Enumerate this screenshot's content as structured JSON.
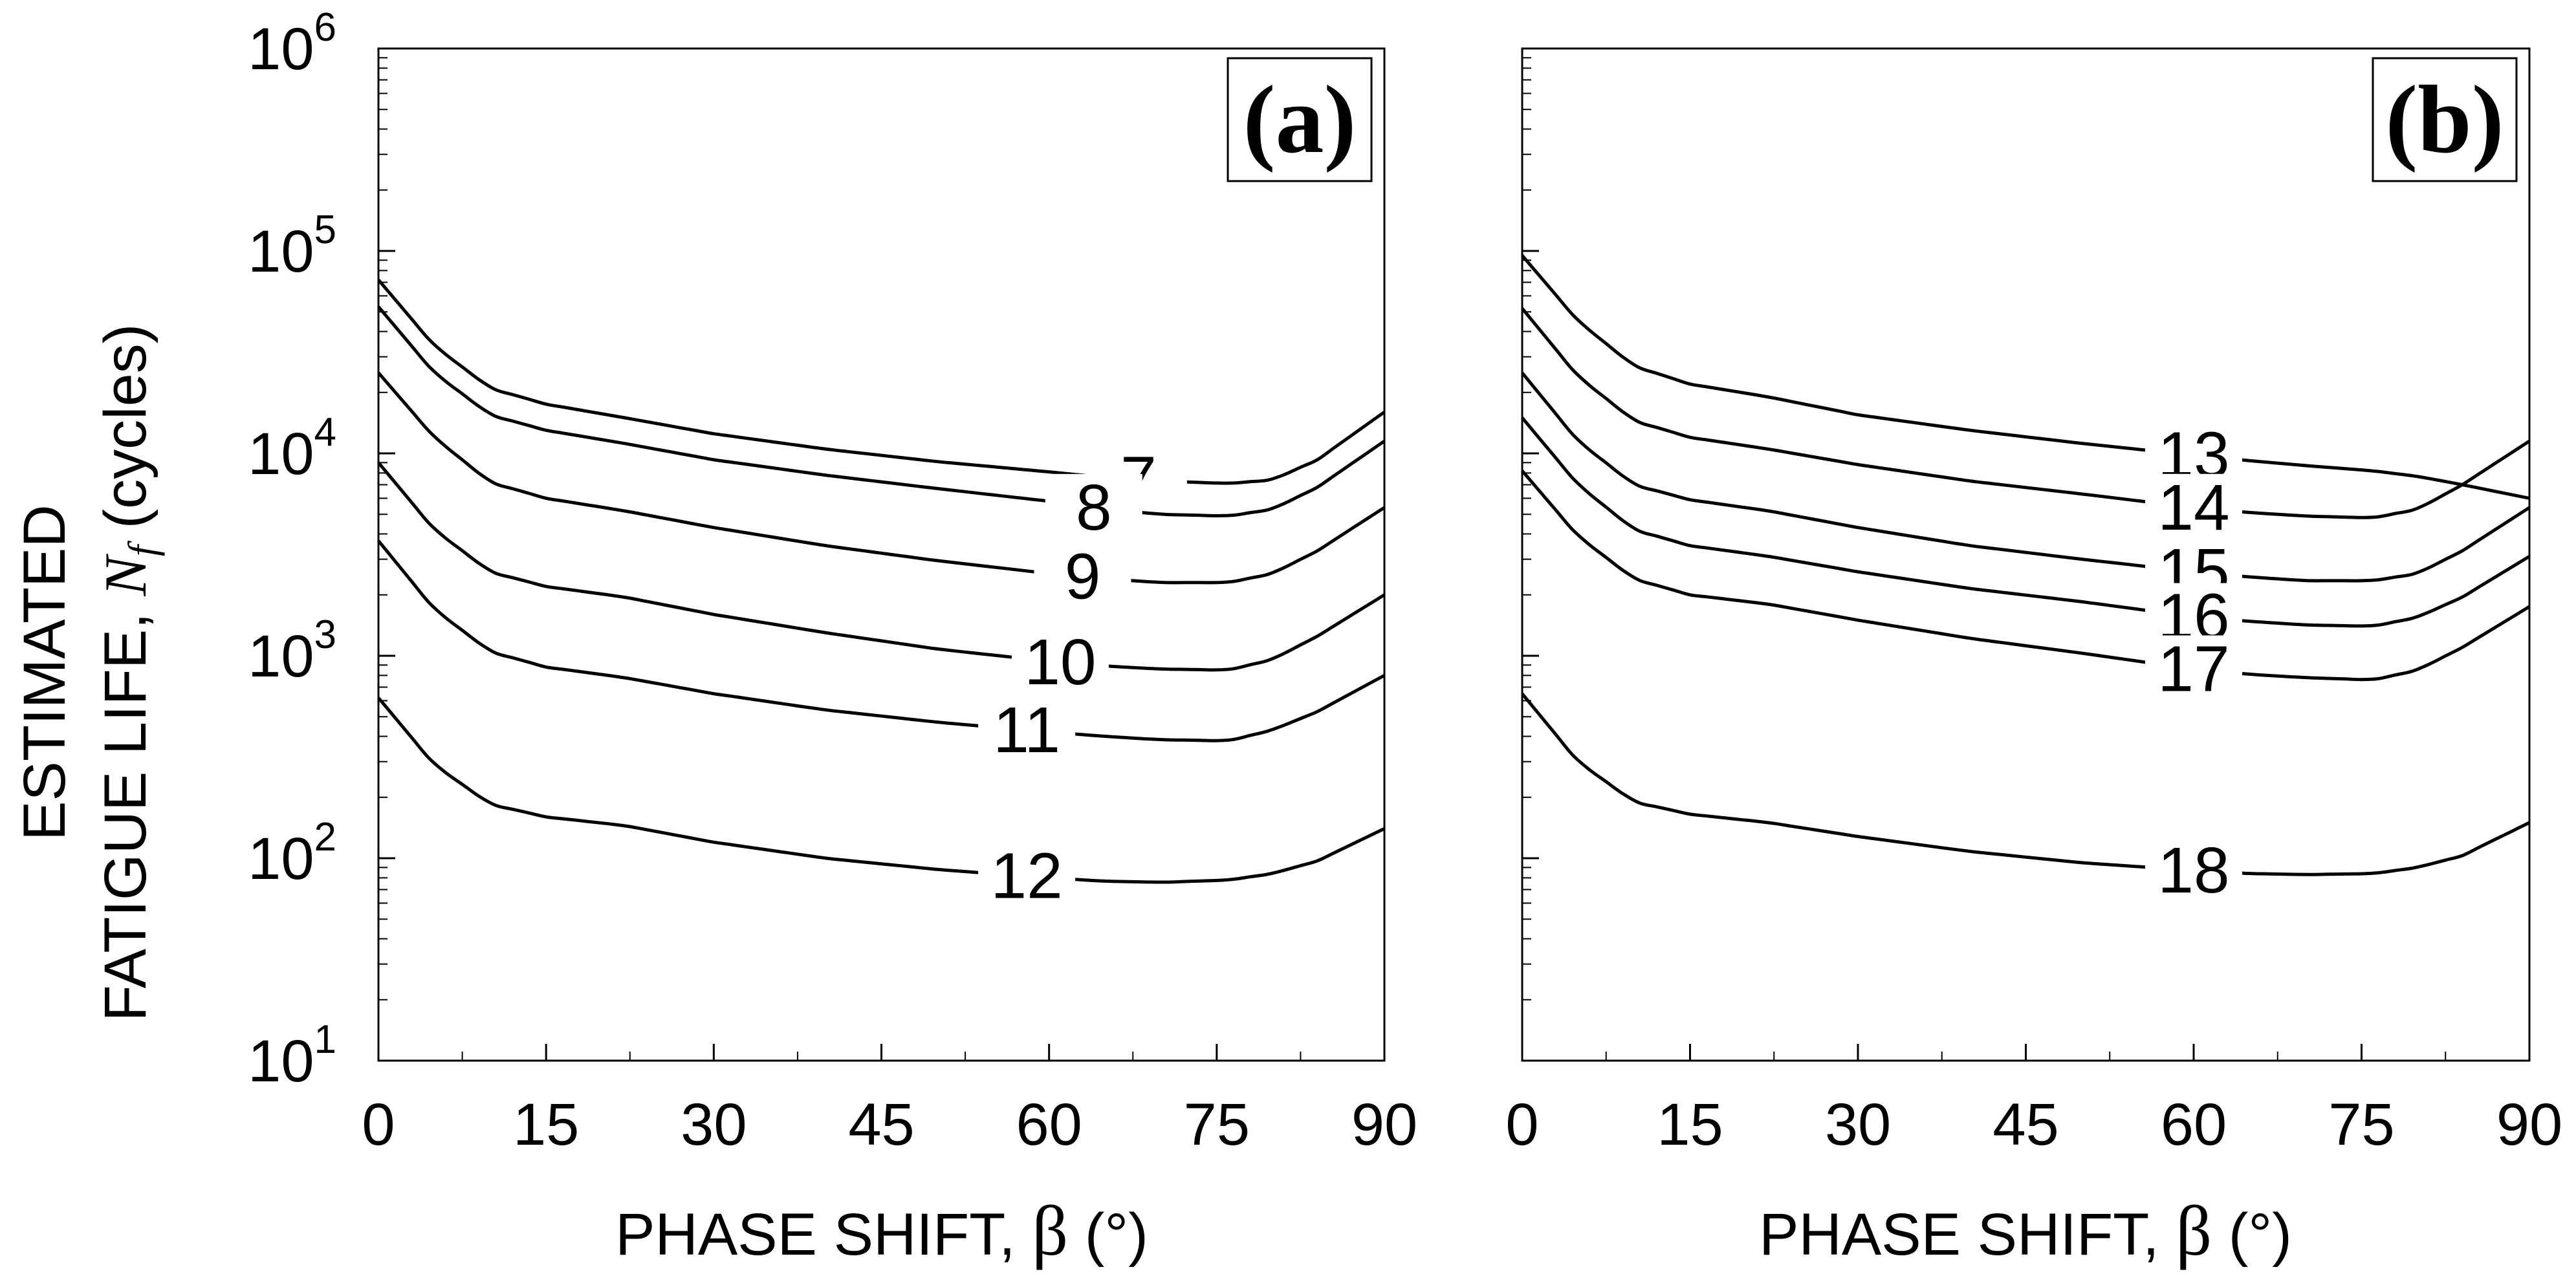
{
  "chart_data": [
    {
      "type": "line",
      "panel_label": "(a)",
      "title": "",
      "xlabel": "PHASE SHIFT, ",
      "xlabel_symbol": "β",
      "xlabel_unit": " (°)",
      "ylabel_line1": "ESTIMATED",
      "ylabel_line2_pre": "FATIGUE LIFE, ",
      "ylabel_symbol": "N",
      "ylabel_subscript": "f",
      "ylabel_line2_post": " (cycles)",
      "xlim": [
        0,
        90
      ],
      "ylim": [
        10,
        1000000
      ],
      "yscale": "log",
      "xticks": [
        0,
        15,
        30,
        45,
        60,
        75,
        90
      ],
      "yticks": [
        {
          "base": "10",
          "exp": "1",
          "value": 10
        },
        {
          "base": "10",
          "exp": "2",
          "value": 100
        },
        {
          "base": "10",
          "exp": "3",
          "value": 1000
        },
        {
          "base": "10",
          "exp": "4",
          "value": 10000
        },
        {
          "base": "10",
          "exp": "5",
          "value": 100000
        },
        {
          "base": "10",
          "exp": "6",
          "value": 1000000
        }
      ],
      "legend": "inline curve labels",
      "series": [
        {
          "name": "7",
          "x": [
            0,
            5,
            10,
            15,
            22,
            30,
            40,
            50,
            60,
            65,
            70,
            76,
            80,
            84,
            90
          ],
          "values": [
            72000,
            34000,
            21000,
            17500,
            15000,
            12500,
            10500,
            9100,
            8100,
            7600,
            7300,
            7100,
            7400,
            9300,
            16000
          ]
        },
        {
          "name": "8",
          "x": [
            0,
            5,
            10,
            15,
            22,
            30,
            40,
            50,
            60,
            65,
            70,
            76,
            80,
            84,
            90
          ],
          "values": [
            53000,
            25000,
            15500,
            13000,
            11200,
            9300,
            7800,
            6700,
            5800,
            5300,
            5000,
            4900,
            5300,
            6800,
            11500
          ]
        },
        {
          "name": "9",
          "x": [
            0,
            5,
            10,
            15,
            22,
            30,
            40,
            50,
            60,
            65,
            70,
            76,
            80,
            84,
            90
          ],
          "values": [
            25000,
            12000,
            7200,
            6000,
            5200,
            4300,
            3500,
            2950,
            2550,
            2400,
            2300,
            2300,
            2550,
            3300,
            5400
          ]
        },
        {
          "name": "10",
          "x": [
            0,
            5,
            10,
            15,
            22,
            30,
            40,
            50,
            60,
            65,
            70,
            76,
            80,
            84,
            90
          ],
          "values": [
            9000,
            4200,
            2600,
            2200,
            1950,
            1600,
            1300,
            1080,
            940,
            890,
            860,
            850,
            960,
            1250,
            2000
          ]
        },
        {
          "name": "11",
          "x": [
            0,
            5,
            10,
            15,
            22,
            30,
            40,
            50,
            60,
            65,
            70,
            76,
            80,
            84,
            90
          ],
          "values": [
            3700,
            1700,
            1050,
            880,
            780,
            650,
            540,
            470,
            420,
            400,
            385,
            380,
            430,
            530,
            800
          ]
        },
        {
          "name": "12",
          "x": [
            0,
            5,
            10,
            15,
            22,
            30,
            40,
            50,
            60,
            65,
            70,
            76,
            80,
            84,
            90
          ],
          "values": [
            620,
            290,
            185,
            160,
            145,
            120,
            100,
            88,
            80,
            77,
            76,
            78,
            84,
            97,
            140
          ]
        }
      ]
    },
    {
      "type": "line",
      "panel_label": "(b)",
      "title": "",
      "xlabel": "PHASE SHIFT, ",
      "xlabel_symbol": "β",
      "xlabel_unit": " (°)",
      "xlim": [
        0,
        90
      ],
      "ylim": [
        10,
        1000000
      ],
      "yscale": "log",
      "xticks": [
        0,
        15,
        30,
        45,
        60,
        75,
        90
      ],
      "legend": "inline curve labels",
      "series": [
        {
          "name": "13",
          "x": [
            0,
            5,
            10,
            15,
            22,
            30,
            40,
            50,
            60,
            65,
            70,
            76,
            80,
            84,
            90
          ],
          "values": [
            95000,
            45000,
            27000,
            22000,
            19000,
            15500,
            13000,
            11200,
            9800,
            9200,
            8700,
            8200,
            7700,
            7000,
            6000
          ]
        },
        {
          "name": "14",
          "x": [
            0,
            5,
            10,
            15,
            22,
            30,
            40,
            50,
            60,
            65,
            70,
            76,
            80,
            84,
            90
          ],
          "values": [
            52000,
            24000,
            14500,
            12000,
            10500,
            8800,
            7300,
            6300,
            5400,
            5100,
            4900,
            4800,
            5300,
            7000,
            11500
          ]
        },
        {
          "name": "15",
          "x": [
            0,
            5,
            10,
            15,
            22,
            30,
            40,
            50,
            60,
            65,
            70,
            76,
            80,
            84,
            90
          ],
          "values": [
            25000,
            11500,
            7000,
            5900,
            5200,
            4300,
            3500,
            3000,
            2600,
            2450,
            2350,
            2350,
            2550,
            3300,
            5400
          ]
        },
        {
          "name": "16",
          "x": [
            0,
            5,
            10,
            15,
            22,
            30,
            40,
            50,
            60,
            65,
            70,
            76,
            80,
            84,
            90
          ],
          "values": [
            15000,
            7000,
            4200,
            3500,
            3100,
            2600,
            2150,
            1850,
            1560,
            1480,
            1420,
            1400,
            1550,
            1950,
            3100
          ]
        },
        {
          "name": "17",
          "x": [
            0,
            5,
            10,
            15,
            22,
            30,
            40,
            50,
            60,
            65,
            70,
            76,
            80,
            84,
            90
          ],
          "values": [
            8200,
            3900,
            2400,
            2000,
            1800,
            1500,
            1220,
            1030,
            860,
            810,
            780,
            760,
            850,
            1100,
            1750
          ]
        },
        {
          "name": "18",
          "x": [
            0,
            5,
            10,
            15,
            22,
            30,
            40,
            50,
            60,
            65,
            70,
            76,
            80,
            84,
            90
          ],
          "values": [
            650,
            300,
            190,
            165,
            150,
            128,
            108,
            95,
            87,
            84,
            83,
            84,
            90,
            103,
            150
          ]
        }
      ]
    }
  ]
}
